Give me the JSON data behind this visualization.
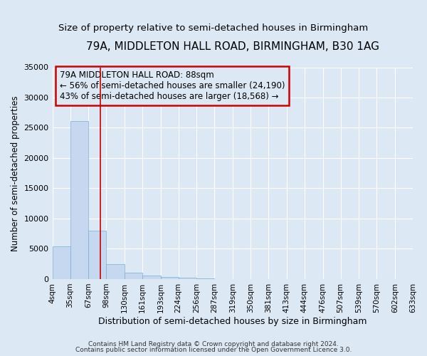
{
  "title": "79A, MIDDLETON HALL ROAD, BIRMINGHAM, B30 1AG",
  "subtitle": "Size of property relative to semi-detached houses in Birmingham",
  "xlabel": "Distribution of semi-detached houses by size in Birmingham",
  "ylabel": "Number of semi-detached properties",
  "footer1": "Contains HM Land Registry data © Crown copyright and database right 2024.",
  "footer2": "Contains public sector information licensed under the Open Government Licence 3.0.",
  "bar_edges": [
    4,
    35,
    67,
    98,
    130,
    161,
    193,
    224,
    256,
    287,
    319,
    350,
    381,
    413,
    444,
    476,
    507,
    539,
    570,
    602,
    633
  ],
  "bar_heights": [
    5400,
    26100,
    8050,
    2450,
    1050,
    580,
    310,
    190,
    110,
    0,
    0,
    0,
    0,
    0,
    0,
    0,
    0,
    0,
    0,
    0
  ],
  "bar_color": "#c5d8f0",
  "bar_edge_color": "#7aafd4",
  "red_line_x": 88,
  "annotation_line1": "79A MIDDLETON HALL ROAD: 88sqm",
  "annotation_line2": "← 56% of semi-detached houses are smaller (24,190)",
  "annotation_line3": "43% of semi-detached houses are larger (18,568) →",
  "annotation_box_color": "#cc0000",
  "ylim": [
    0,
    35000
  ],
  "yticks": [
    0,
    5000,
    10000,
    15000,
    20000,
    25000,
    30000,
    35000
  ],
  "background_color": "#dde8f5",
  "grid_color": "#ffffff",
  "title_fontsize": 11,
  "subtitle_fontsize": 9.5,
  "annotation_fontsize": 8.5
}
